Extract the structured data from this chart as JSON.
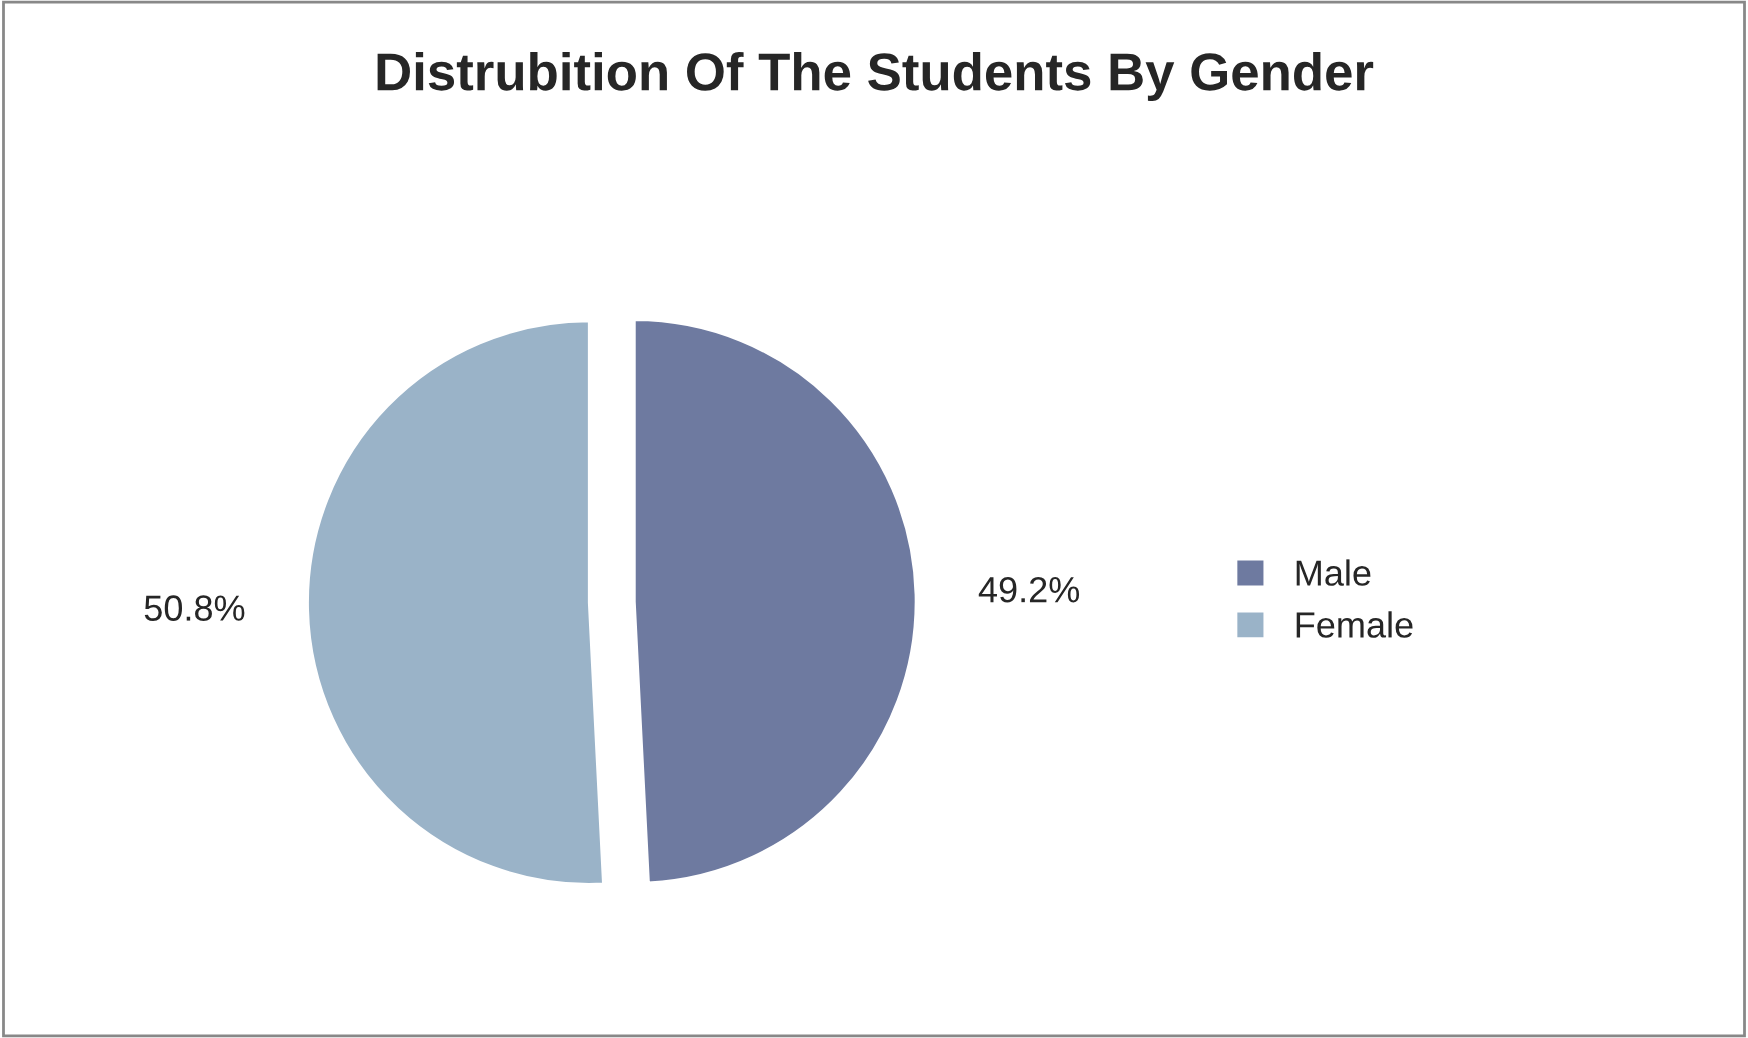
{
  "chart_data": {
    "type": "pie",
    "title": "Distrubition Of The Students By Gender",
    "categories": [
      "Male",
      "Female"
    ],
    "values": [
      49.2,
      50.8
    ],
    "colors": [
      "#6e7aa0",
      "#9ab3c8"
    ],
    "value_labels": [
      "49.2%",
      "50.8%"
    ],
    "legend": "right"
  }
}
